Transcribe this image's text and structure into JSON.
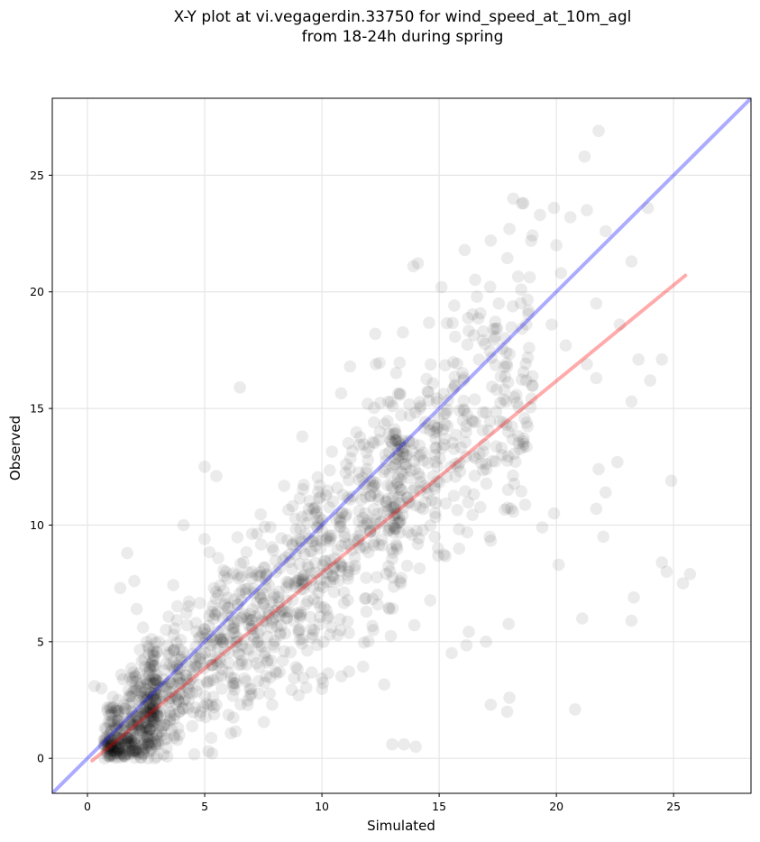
{
  "chart_data": {
    "type": "scatter",
    "title_line1": "X-Y plot at vi.vegagerdin.33750 for wind_speed_at_10m_agl",
    "title_line2": "from 18-24h during spring",
    "xlabel": "Simulated",
    "ylabel": "Observed",
    "xlim": [
      -1.5,
      28.3
    ],
    "ylim": [
      -1.5,
      28.3
    ],
    "xticks": [
      0,
      5,
      10,
      15,
      20,
      25
    ],
    "yticks": [
      0,
      5,
      10,
      15,
      20,
      25
    ],
    "grid": true,
    "point_color": "#000000",
    "point_opacity": 0.08,
    "identity_line": {
      "x": [
        -1.5,
        28.3
      ],
      "y": [
        -1.5,
        28.3
      ],
      "color": "#0000ff",
      "opacity": 0.33
    },
    "fit_line": {
      "x": [
        0.2,
        25.5
      ],
      "y": [
        -0.1,
        20.7
      ],
      "color": "#ff0000",
      "opacity": 0.33
    },
    "notable_points": [
      {
        "x": 21.8,
        "y": 26.9
      },
      {
        "x": 21.2,
        "y": 25.8
      },
      {
        "x": 18.6,
        "y": 23.8
      },
      {
        "x": 19.9,
        "y": 23.6
      },
      {
        "x": 21.3,
        "y": 23.5
      },
      {
        "x": 20.6,
        "y": 23.2
      },
      {
        "x": 23.9,
        "y": 23.6
      },
      {
        "x": 19.3,
        "y": 23.3
      },
      {
        "x": 20.0,
        "y": 22.0
      },
      {
        "x": 22.1,
        "y": 22.6
      },
      {
        "x": 17.2,
        "y": 22.2
      },
      {
        "x": 18.0,
        "y": 22.7
      },
      {
        "x": 23.2,
        "y": 21.3
      },
      {
        "x": 13.9,
        "y": 21.1
      },
      {
        "x": 20.2,
        "y": 20.8
      },
      {
        "x": 15.1,
        "y": 20.2
      },
      {
        "x": 18.5,
        "y": 20.1
      },
      {
        "x": 19.8,
        "y": 18.6
      },
      {
        "x": 21.7,
        "y": 19.5
      },
      {
        "x": 22.7,
        "y": 18.6
      },
      {
        "x": 20.4,
        "y": 17.7
      },
      {
        "x": 21.3,
        "y": 16.9
      },
      {
        "x": 23.5,
        "y": 17.1
      },
      {
        "x": 24.0,
        "y": 16.2
      },
      {
        "x": 21.7,
        "y": 16.3
      },
      {
        "x": 23.2,
        "y": 15.3
      },
      {
        "x": 24.5,
        "y": 17.1
      },
      {
        "x": 6.5,
        "y": 15.9
      },
      {
        "x": 5.0,
        "y": 12.5
      },
      {
        "x": 5.5,
        "y": 12.1
      },
      {
        "x": 22.6,
        "y": 12.7
      },
      {
        "x": 21.8,
        "y": 12.4
      },
      {
        "x": 24.9,
        "y": 11.9
      },
      {
        "x": 22.1,
        "y": 11.4
      },
      {
        "x": 21.7,
        "y": 10.7
      },
      {
        "x": 19.9,
        "y": 10.5
      },
      {
        "x": 19.4,
        "y": 9.9
      },
      {
        "x": 22.0,
        "y": 9.5
      },
      {
        "x": 20.1,
        "y": 8.3
      },
      {
        "x": 24.5,
        "y": 8.4
      },
      {
        "x": 24.7,
        "y": 8.0
      },
      {
        "x": 25.7,
        "y": 7.9
      },
      {
        "x": 25.4,
        "y": 7.5
      },
      {
        "x": 23.3,
        "y": 6.9
      },
      {
        "x": 21.1,
        "y": 6.0
      },
      {
        "x": 23.2,
        "y": 5.9
      },
      {
        "x": 17.0,
        "y": 5.0
      },
      {
        "x": 20.8,
        "y": 2.1
      },
      {
        "x": 18.0,
        "y": 2.6
      },
      {
        "x": 17.9,
        "y": 2.0
      },
      {
        "x": 17.2,
        "y": 2.3
      },
      {
        "x": 13.0,
        "y": 0.6
      },
      {
        "x": 13.5,
        "y": 0.6
      },
      {
        "x": 14.0,
        "y": 0.5
      },
      {
        "x": 4.1,
        "y": 10.0
      },
      {
        "x": 1.7,
        "y": 8.8
      },
      {
        "x": 1.4,
        "y": 7.3
      },
      {
        "x": 2.0,
        "y": 7.6
      },
      {
        "x": 2.1,
        "y": 6.4
      },
      {
        "x": 0.6,
        "y": 3.0
      },
      {
        "x": 0.3,
        "y": 3.1
      },
      {
        "x": 12.3,
        "y": 16.9
      },
      {
        "x": 11.2,
        "y": 16.8
      }
    ]
  }
}
